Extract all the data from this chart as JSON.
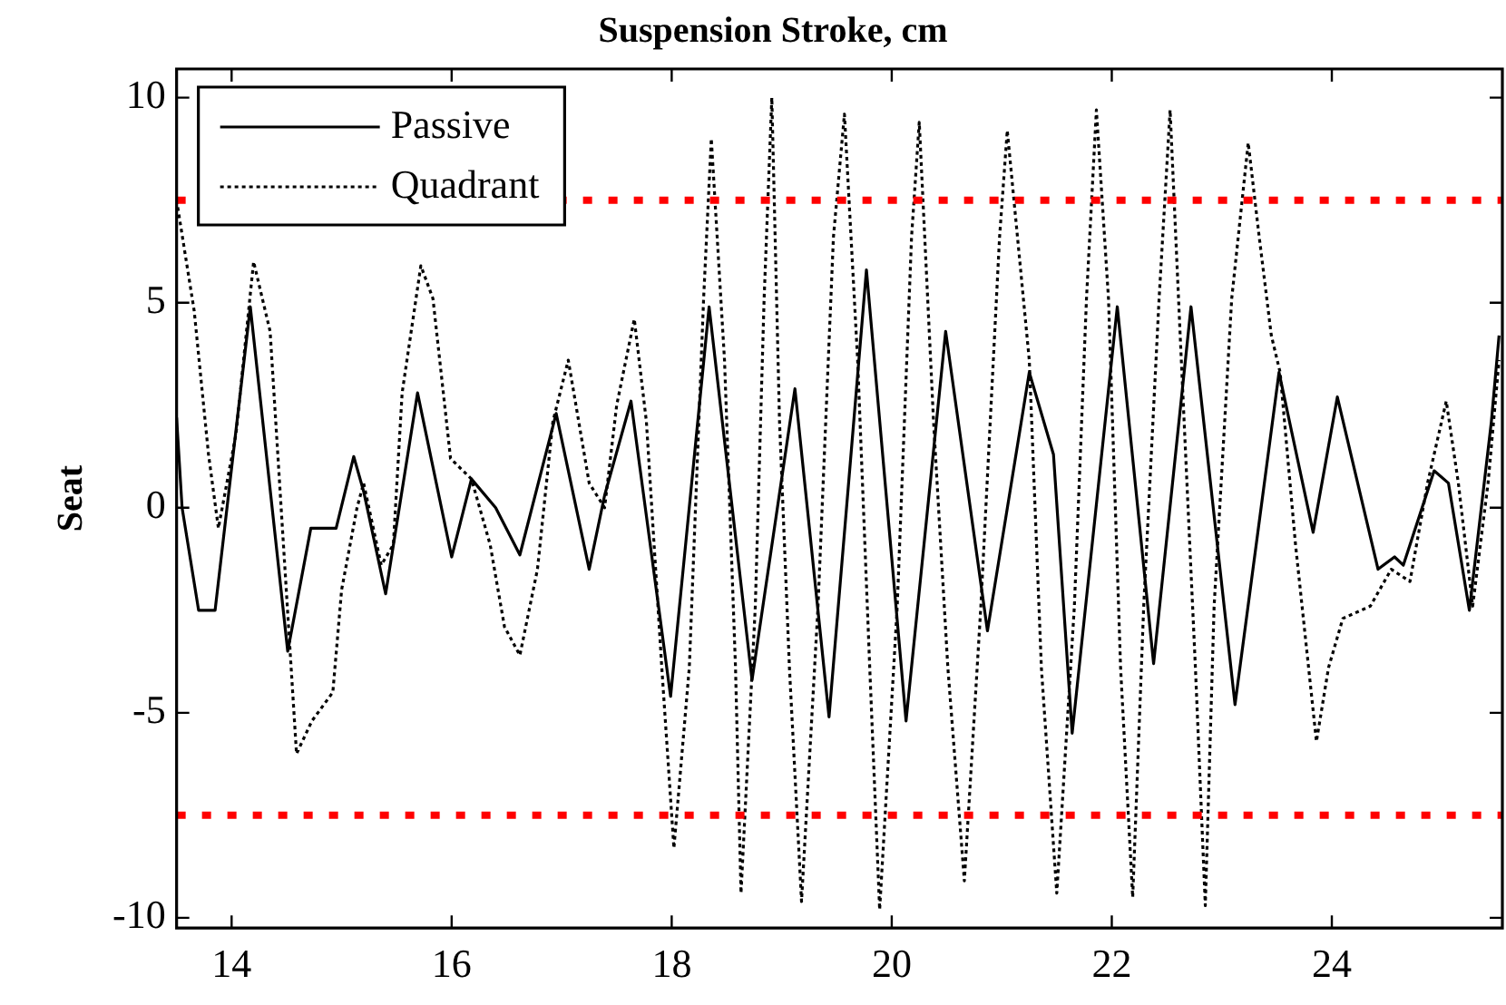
{
  "chart_data": {
    "type": "line",
    "title": "Suspension Stroke, cm",
    "ylabel": "Seat",
    "xlim": [
      13.5,
      25.55
    ],
    "xticks": [
      14,
      16,
      18,
      20,
      22,
      24
    ],
    "ylim": [
      -10.25,
      10.7
    ],
    "yticks": [
      -10,
      -5,
      0,
      5,
      10
    ],
    "grid": false,
    "legend": "top left",
    "marker": "none",
    "ref_lines": [
      {
        "axis": "y",
        "value": 7.5,
        "color": "#ff0000",
        "line_style": "dotted"
      },
      {
        "axis": "y",
        "value": -7.5,
        "color": "#ff0000",
        "line_style": "dotted"
      }
    ],
    "series": [
      {
        "name": "Passive",
        "color": "#000000",
        "line_style": "solid",
        "x": [
          13.5,
          13.55,
          13.7,
          13.85,
          14.17,
          14.51,
          14.72,
          14.95,
          15.11,
          15.2,
          15.4,
          15.69,
          16.0,
          16.18,
          16.4,
          16.62,
          16.95,
          17.25,
          17.39,
          17.63,
          17.99,
          18.34,
          18.73,
          19.12,
          19.43,
          19.77,
          20.13,
          20.49,
          20.87,
          21.25,
          21.47,
          21.64,
          22.05,
          22.38,
          22.72,
          23.12,
          23.52,
          23.83,
          24.05,
          24.42,
          24.57,
          24.65,
          24.93,
          25.06,
          25.25,
          25.45,
          25.52
        ],
        "values": [
          2.2,
          0,
          -2.5,
          -2.5,
          4.9,
          -3.5,
          -0.5,
          -0.5,
          1.25,
          0.4,
          -2.1,
          2.8,
          -1.2,
          0.7,
          0,
          -1.15,
          2.3,
          -1.5,
          0.3,
          2.6,
          -4.6,
          4.9,
          -4.2,
          2.9,
          -5.1,
          5.8,
          -5.2,
          4.3,
          -3.0,
          3.3,
          1.3,
          -5.5,
          4.9,
          -3.8,
          4.9,
          -4.8,
          3.3,
          -0.6,
          2.7,
          -1.5,
          -1.2,
          -1.4,
          0.9,
          0.6,
          -2.5,
          2.1,
          4.2
        ]
      },
      {
        "name": "Quadrant",
        "color": "#000000",
        "line_style": "dotted",
        "x": [
          13.5,
          13.66,
          13.79,
          13.88,
          14.04,
          14.2,
          14.35,
          14.59,
          14.73,
          14.92,
          15.0,
          15.14,
          15.2,
          15.36,
          15.47,
          15.55,
          15.72,
          15.83,
          15.99,
          16.18,
          16.35,
          16.48,
          16.62,
          16.78,
          16.92,
          17.06,
          17.25,
          17.39,
          17.5,
          17.66,
          17.77,
          17.91,
          18.02,
          18.16,
          18.29,
          18.36,
          18.48,
          18.58,
          18.63,
          18.76,
          18.84,
          18.91,
          18.98,
          19.07,
          19.18,
          19.33,
          19.47,
          19.57,
          19.69,
          19.8,
          19.89,
          20.05,
          20.18,
          20.25,
          20.38,
          20.51,
          20.66,
          20.81,
          20.98,
          21.05,
          21.25,
          21.36,
          21.5,
          21.66,
          21.77,
          21.86,
          21.97,
          22.08,
          22.19,
          22.29,
          22.43,
          22.53,
          22.62,
          22.76,
          22.85,
          22.93,
          23.09,
          23.24,
          23.34,
          23.45,
          23.53,
          23.67,
          23.86,
          23.97,
          24.1,
          24.35,
          24.54,
          24.71,
          24.87,
          25.04,
          25.15,
          25.28,
          25.42,
          25.52
        ],
        "values": [
          7.5,
          4.8,
          1.3,
          -0.5,
          1.8,
          6.0,
          4.3,
          -6.0,
          -5.2,
          -4.5,
          -2.0,
          0,
          0.6,
          -1.4,
          -0.9,
          2.8,
          5.9,
          5.1,
          1.2,
          0.7,
          -0.9,
          -2.9,
          -3.6,
          -1.5,
          2.1,
          3.6,
          0.6,
          0,
          2.5,
          4.6,
          2.1,
          -3.9,
          -8.3,
          -3.9,
          5.1,
          9.0,
          3.6,
          -3.9,
          -9.4,
          -2.4,
          5.1,
          10.0,
          2.1,
          -3.9,
          -9.6,
          -2.4,
          6.6,
          9.6,
          3.6,
          -3.9,
          -9.8,
          -2.4,
          6.6,
          9.4,
          2.1,
          -3.9,
          -9.1,
          -2.4,
          6.6,
          9.2,
          3.6,
          -3.9,
          -9.4,
          -2.4,
          5.1,
          9.7,
          5.1,
          -3.9,
          -9.5,
          -2.4,
          5.1,
          9.7,
          4.3,
          -3.9,
          -9.7,
          -2.4,
          5.1,
          8.9,
          6.6,
          4.2,
          3.3,
          -0.9,
          -5.7,
          -3.9,
          -2.7,
          -2.4,
          -1.5,
          -1.8,
          0.6,
          2.6,
          0.6,
          -2.4,
          0.6,
          3.6
        ]
      }
    ]
  }
}
